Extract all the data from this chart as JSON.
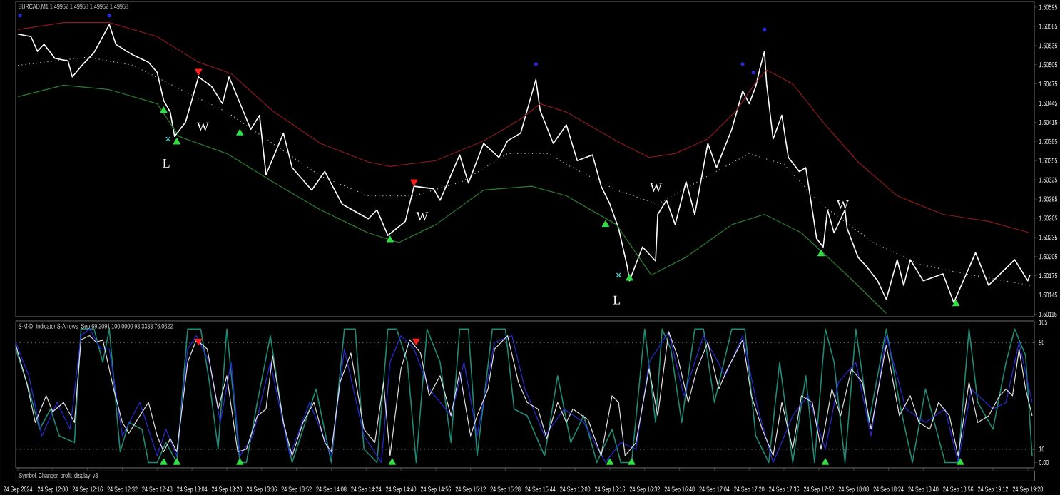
{
  "chart_data": [
    {
      "type": "line",
      "title": "EURCAD,M1 1.49962 1.49968 1.49962 1.49968",
      "xlim": [
        "2024-09-24T11:43",
        "2024-09-24T19:31"
      ],
      "ylim": [
        1.50111,
        1.50604
      ],
      "yticks": [
        1.50115,
        1.50145,
        1.50175,
        1.50205,
        1.50235,
        1.50265,
        1.50295,
        1.50325,
        1.50355,
        1.50385,
        1.50415,
        1.50445,
        1.50475,
        1.50505,
        1.50535,
        1.50565,
        1.50595
      ],
      "tick_labels": "y",
      "annotations": [
        "L",
        "W",
        "W",
        "L",
        "W",
        "W"
      ],
      "series": [
        {
          "color": "#ffffff",
          "x": [
            "2024-09-24T11:44",
            "2024-09-24T11:50",
            "2024-09-24T11:53",
            "2024-09-24T11:56",
            "2024-09-24T12:01",
            "2024-09-24T12:07",
            "2024-09-24T12:09",
            "2024-09-24T12:14",
            "2024-09-24T12:19",
            "2024-09-24T12:26",
            "2024-09-24T12:29",
            "2024-09-24T12:34",
            "2024-09-24T12:37",
            "2024-09-24T12:44",
            "2024-09-24T12:48",
            "2024-09-24T12:51",
            "2024-09-24T12:54",
            "2024-09-24T12:56",
            "2024-09-24T13:01",
            "2024-09-24T13:07",
            "2024-09-24T13:13",
            "2024-09-24T13:18",
            "2024-09-24T13:21",
            "2024-09-24T13:31",
            "2024-09-24T13:35",
            "2024-09-24T13:38",
            "2024-09-24T13:46",
            "2024-09-24T13:50",
            "2024-09-24T13:59",
            "2024-09-24T14:05",
            "2024-09-24T14:13",
            "2024-09-24T14:25",
            "2024-09-24T14:29",
            "2024-09-24T14:34",
            "2024-09-24T14:42",
            "2024-09-24T14:46",
            "2024-09-24T14:55",
            "2024-09-24T14:58",
            "2024-09-24T15:07",
            "2024-09-24T15:11",
            "2024-09-24T15:18",
            "2024-09-24T15:25",
            "2024-09-24T15:29",
            "2024-09-24T15:35",
            "2024-09-24T15:42",
            "2024-09-24T15:44",
            "2024-09-24T15:50",
            "2024-09-24T15:56",
            "2024-09-24T16:01",
            "2024-09-24T16:08",
            "2024-09-24T16:12",
            "2024-09-24T16:16",
            "2024-09-24T16:20",
            "2024-09-24T16:24",
            "2024-09-24T16:25",
            "2024-09-24T16:31",
            "2024-09-24T16:37",
            "2024-09-24T16:38",
            "2024-09-24T16:42",
            "2024-09-24T16:46",
            "2024-09-24T16:51",
            "2024-09-24T16:55",
            "2024-09-24T17:01",
            "2024-09-24T17:05",
            "2024-09-24T17:12",
            "2024-09-24T17:17",
            "2024-09-24T17:20",
            "2024-09-24T17:23",
            "2024-09-24T17:25",
            "2024-09-24T17:27",
            "2024-09-24T17:28",
            "2024-09-24T17:31",
            "2024-09-24T17:35",
            "2024-09-24T17:38",
            "2024-09-24T17:43",
            "2024-09-24T17:46",
            "2024-09-24T17:51",
            "2024-09-24T17:54",
            "2024-09-24T17:56",
            "2024-09-24T17:59",
            "2024-09-24T18:04",
            "2024-09-24T18:05",
            "2024-09-24T18:10",
            "2024-09-24T18:14",
            "2024-09-24T18:19",
            "2024-09-24T18:23",
            "2024-09-24T18:28",
            "2024-09-24T18:31",
            "2024-09-24T18:34",
            "2024-09-24T18:40",
            "2024-09-24T18:49",
            "2024-09-24T18:54",
            "2024-09-24T19:04",
            "2024-09-24T19:10",
            "2024-09-24T19:22",
            "2024-09-24T19:28",
            "2024-09-24T19:29"
          ],
          "values": [
            1.50553,
            1.50549,
            1.50526,
            1.50537,
            1.50515,
            1.50511,
            1.50486,
            1.50506,
            1.50524,
            1.50568,
            1.50537,
            1.50526,
            1.5052,
            1.50509,
            1.50493,
            1.50449,
            1.50431,
            1.50393,
            1.50415,
            1.50486,
            1.50471,
            1.50444,
            1.50486,
            1.50404,
            1.50426,
            1.50333,
            1.50398,
            1.50344,
            1.50309,
            1.50338,
            1.50287,
            1.50264,
            1.50278,
            1.50238,
            1.5026,
            1.50315,
            1.50311,
            1.50293,
            1.50364,
            1.5032,
            1.50382,
            1.5036,
            1.50386,
            1.50398,
            1.50482,
            1.50433,
            1.50382,
            1.50411,
            1.50355,
            1.50364,
            1.50315,
            1.50287,
            1.50249,
            1.50189,
            1.50167,
            1.5022,
            1.50198,
            1.50271,
            1.50293,
            1.50255,
            1.50322,
            1.50271,
            1.50382,
            1.50344,
            1.50404,
            1.50464,
            1.50444,
            1.50471,
            1.505,
            1.50526,
            1.50475,
            1.50389,
            1.50426,
            1.5036,
            1.50338,
            1.50344,
            1.50233,
            1.5022,
            1.50278,
            1.50242,
            1.50278,
            1.50249,
            1.50204,
            1.50189,
            1.50167,
            1.50138,
            1.502,
            1.5016,
            1.502,
            1.50167,
            1.50178,
            1.50133,
            1.50211,
            1.5016,
            1.502,
            1.50167,
            1.50176
          ]
        },
        {
          "color": "#8b1a1a",
          "x": [
            "2024-09-24T11:44",
            "2024-09-24T12:05",
            "2024-09-24T12:26",
            "2024-09-24T12:48",
            "2024-09-24T13:07",
            "2024-09-24T13:22",
            "2024-09-24T13:41",
            "2024-09-24T14:03",
            "2024-09-24T14:25",
            "2024-09-24T14:35",
            "2024-09-24T14:56",
            "2024-09-24T15:18",
            "2024-09-24T15:35",
            "2024-09-24T15:44",
            "2024-09-24T15:56",
            "2024-09-24T16:19",
            "2024-09-24T16:34",
            "2024-09-24T16:46",
            "2024-09-24T17:01",
            "2024-09-24T17:14",
            "2024-09-24T17:23",
            "2024-09-24T17:28",
            "2024-09-24T17:40",
            "2024-09-24T17:55",
            "2024-09-24T18:10",
            "2024-09-24T18:28",
            "2024-09-24T18:49",
            "2024-09-24T19:10",
            "2024-09-24T19:29"
          ],
          "values": [
            1.5056,
            1.50571,
            1.50571,
            1.50549,
            1.50509,
            1.50491,
            1.50433,
            1.50382,
            1.50353,
            1.50346,
            1.50355,
            1.50386,
            1.5042,
            1.50444,
            1.50431,
            1.50386,
            1.5036,
            1.50366,
            1.50389,
            1.50433,
            1.50477,
            1.50497,
            1.50475,
            1.50411,
            1.50353,
            1.503,
            1.50271,
            1.5026,
            1.50242
          ]
        },
        {
          "color": "#b4b4b4",
          "line_style": "dotted",
          "x": [
            "2024-09-24T11:44",
            "2024-09-24T12:16",
            "2024-09-24T12:37",
            "2024-09-24T12:59",
            "2024-09-24T13:20",
            "2024-09-24T13:41",
            "2024-09-24T14:03",
            "2024-09-24T14:25",
            "2024-09-24T14:46",
            "2024-09-24T15:08",
            "2024-09-24T15:29",
            "2024-09-24T15:48",
            "2024-09-24T15:56",
            "2024-09-24T16:19",
            "2024-09-24T16:38",
            "2024-09-24T17:01",
            "2024-09-24T17:20",
            "2024-09-24T17:36",
            "2024-09-24T17:53",
            "2024-09-24T18:17",
            "2024-09-24T18:38",
            "2024-09-24T18:59",
            "2024-09-24T19:29"
          ],
          "values": [
            1.50504,
            1.50517,
            1.50504,
            1.50466,
            1.50431,
            1.50382,
            1.50331,
            1.503,
            1.503,
            1.50322,
            1.50366,
            1.50366,
            1.50349,
            1.50309,
            1.50287,
            1.50331,
            1.50366,
            1.50349,
            1.50287,
            1.50227,
            1.50193,
            1.50178,
            1.5016
          ]
        },
        {
          "color": "#2e7d32",
          "x": [
            "2024-09-24T11:44",
            "2024-09-24T12:05",
            "2024-09-24T12:26",
            "2024-09-24T12:48",
            "2024-09-24T12:58",
            "2024-09-24T13:20",
            "2024-09-24T13:41",
            "2024-09-24T14:03",
            "2024-09-24T14:25",
            "2024-09-24T14:39",
            "2024-09-24T14:56",
            "2024-09-24T15:18",
            "2024-09-24T15:40",
            "2024-09-24T15:56",
            "2024-09-24T16:19",
            "2024-09-24T16:35",
            "2024-09-24T16:51",
            "2024-09-24T17:12",
            "2024-09-24T17:27",
            "2024-09-24T17:44",
            "2024-09-24T18:05",
            "2024-09-24T18:23"
          ],
          "values": [
            1.50455,
            1.50473,
            1.50466,
            1.50444,
            1.50393,
            1.50366,
            1.50322,
            1.50278,
            1.50242,
            1.50227,
            1.50255,
            1.50309,
            1.50315,
            1.503,
            1.50255,
            1.50176,
            1.50204,
            1.50255,
            1.50271,
            1.50242,
            1.50176,
            1.50116
          ]
        },
        {
          "type": "scatter",
          "marker": "triangle",
          "color": "#33dd44",
          "x": [
            "2024-09-24T12:51",
            "2024-09-24T12:57",
            "2024-09-24T13:26",
            "2024-09-24T14:35",
            "2024-09-24T16:14",
            "2024-09-24T16:25",
            "2024-09-24T17:53",
            "2024-09-24T18:55"
          ],
          "values": [
            1.50433,
            1.50384,
            1.50398,
            1.50231,
            1.50255,
            1.50171,
            1.50209,
            1.50131
          ]
        },
        {
          "type": "scatter",
          "marker": "triangle-down",
          "color": "#ff2020",
          "x": [
            "2024-09-24T13:07",
            "2024-09-24T14:46"
          ],
          "values": [
            1.50495,
            1.50322
          ]
        },
        {
          "type": "scatter",
          "marker": "circle",
          "color": "#2a2ad8",
          "x": [
            "2024-09-24T11:45",
            "2024-09-24T12:26",
            "2024-09-24T15:42",
            "2024-09-24T17:17",
            "2024-09-24T17:22",
            "2024-09-24T17:27"
          ],
          "values": [
            1.50582,
            1.50582,
            1.50506,
            1.50506,
            1.50493,
            1.5056
          ]
        },
        {
          "type": "scatter",
          "marker": "cross",
          "color": "#40e0e0",
          "x": [
            "2024-09-24T12:53",
            "2024-09-24T16:20"
          ],
          "values": [
            1.50389,
            1.50176
          ]
        }
      ]
    },
    {
      "type": "line",
      "title": "S-M-D_Indicator S-Arrows_Sep 69.2091 100.0000 93.3333 76.0622",
      "xlim": [
        "2024-09-24T11:43",
        "2024-09-24T19:31"
      ],
      "ylim": [
        -4,
        106
      ],
      "xticks": [
        {
          "value": "2024-09-24T11:44",
          "label": "24 Sep 2024"
        },
        {
          "value": "2024-09-24T12:00",
          "label": "24 Sep 12:00"
        },
        {
          "value": "2024-09-24T12:16",
          "label": "24 Sep 12:16"
        },
        {
          "value": "2024-09-24T12:32",
          "label": "24 Sep 12:32"
        },
        {
          "value": "2024-09-24T12:48",
          "label": "24 Sep 12:48"
        },
        {
          "value": "2024-09-24T13:04",
          "label": "24 Sep 13:04"
        },
        {
          "value": "2024-09-24T13:20",
          "label": "24 Sep 13:20"
        },
        {
          "value": "2024-09-24T13:36",
          "label": "24 Sep 13:36"
        },
        {
          "value": "2024-09-24T13:52",
          "label": "24 Sep 13:52"
        },
        {
          "value": "2024-09-24T14:08",
          "label": "24 Sep 14:08"
        },
        {
          "value": "2024-09-24T14:24",
          "label": "24 Sep 14:24"
        },
        {
          "value": "2024-09-24T14:40",
          "label": "24 Sep 14:40"
        },
        {
          "value": "2024-09-24T14:56",
          "label": "24 Sep 14:56"
        },
        {
          "value": "2024-09-24T15:12",
          "label": "24 Sep 15:12"
        },
        {
          "value": "2024-09-24T15:28",
          "label": "24 Sep 15:28"
        },
        {
          "value": "2024-09-24T15:44",
          "label": "24 Sep 15:44"
        },
        {
          "value": "2024-09-24T16:00",
          "label": "24 Sep 16:00"
        },
        {
          "value": "2024-09-24T16:16",
          "label": "24 Sep 16:16"
        },
        {
          "value": "2024-09-24T16:32",
          "label": "24 Sep 16:32"
        },
        {
          "value": "2024-09-24T16:48",
          "label": "24 Sep 16:48"
        },
        {
          "value": "2024-09-24T17:04",
          "label": "24 Sep 17:04"
        },
        {
          "value": "2024-09-24T17:20",
          "label": "24 Sep 17:20"
        },
        {
          "value": "2024-09-24T17:36",
          "label": "24 Sep 17:36"
        },
        {
          "value": "2024-09-24T17:52",
          "label": "24 Sep 17:52"
        },
        {
          "value": "2024-09-24T18:08",
          "label": "24 Sep 18:08"
        },
        {
          "value": "2024-09-24T18:24",
          "label": "24 Sep 18:24"
        },
        {
          "value": "2024-09-24T18:40",
          "label": "24 Sep 18:40"
        },
        {
          "value": "2024-09-24T18:56",
          "label": "24 Sep 18:56"
        },
        {
          "value": "2024-09-24T19:12",
          "label": "24 Sep 19:12"
        },
        {
          "value": "2024-09-24T19:28",
          "label": "24 Sep 19:28"
        }
      ],
      "yticks": [
        {
          "value": 0,
          "label": "0.00"
        },
        10,
        90,
        105
      ],
      "ref_lines": [
        {
          "axis": "y",
          "value": 90,
          "color": "#808080",
          "line_style": "dotted"
        },
        {
          "axis": "y",
          "value": 10,
          "color": "#808080",
          "line_style": "dotted"
        }
      ],
      "annotations": [
        "Symbol Changer profit display v3"
      ],
      "series": [
        {
          "color": "#1f8a78",
          "x": [
            "2024-09-24T11:43",
            "2024-09-24T11:49",
            "2024-09-24T11:54",
            "2024-09-24T11:59",
            "2024-09-24T12:03",
            "2024-09-24T12:10",
            "2024-09-24T12:13",
            "2024-09-24T12:19",
            "2024-09-24T12:23",
            "2024-09-24T12:26",
            "2024-09-24T12:31",
            "2024-09-24T12:35",
            "2024-09-24T12:41",
            "2024-09-24T12:44",
            "2024-09-24T12:48",
            "2024-09-24T12:52",
            "2024-09-24T12:57",
            "2024-09-24T13:02",
            "2024-09-24T13:08",
            "2024-09-24T13:12",
            "2024-09-24T13:16",
            "2024-09-24T13:20",
            "2024-09-24T13:26",
            "2024-09-24T13:29",
            "2024-09-24T13:34",
            "2024-09-24T13:40",
            "2024-09-24T13:46",
            "2024-09-24T13:50",
            "2024-09-24T13:55",
            "2024-09-24T14:01",
            "2024-09-24T14:08",
            "2024-09-24T14:14",
            "2024-09-24T14:19",
            "2024-09-24T14:23",
            "2024-09-24T14:29",
            "2024-09-24T14:34",
            "2024-09-24T14:38",
            "2024-09-24T14:43",
            "2024-09-24T14:47",
            "2024-09-24T14:52",
            "2024-09-24T14:58",
            "2024-09-24T15:03",
            "2024-09-24T15:07",
            "2024-09-24T15:11",
            "2024-09-24T15:15",
            "2024-09-24T15:22",
            "2024-09-24T15:28",
            "2024-09-24T15:32",
            "2024-09-24T15:38",
            "2024-09-24T15:46",
            "2024-09-24T15:52",
            "2024-09-24T15:58",
            "2024-09-24T16:04",
            "2024-09-24T16:10",
            "2024-09-24T16:17",
            "2024-09-24T16:21",
            "2024-09-24T16:26",
            "2024-09-24T16:32",
            "2024-09-24T16:37",
            "2024-09-24T16:40",
            "2024-09-24T16:44",
            "2024-09-24T16:49",
            "2024-09-24T16:55",
            "2024-09-24T16:59",
            "2024-09-24T17:04",
            "2024-09-24T17:12",
            "2024-09-24T17:18",
            "2024-09-24T17:23",
            "2024-09-24T17:29",
            "2024-09-24T17:34",
            "2024-09-24T17:40",
            "2024-09-24T17:46",
            "2024-09-24T17:50",
            "2024-09-24T17:55",
            "2024-09-24T17:59",
            "2024-09-24T18:04",
            "2024-09-24T18:09",
            "2024-09-24T18:15",
            "2024-09-24T18:23",
            "2024-09-24T18:29",
            "2024-09-24T18:35",
            "2024-09-24T18:41",
            "2024-09-24T18:50",
            "2024-09-24T18:56",
            "2024-09-24T19:01",
            "2024-09-24T19:05",
            "2024-09-24T19:12",
            "2024-09-24T19:18",
            "2024-09-24T19:22",
            "2024-09-24T19:27",
            "2024-09-24T19:30"
          ],
          "values": [
            85,
            55,
            25,
            40,
            20,
            15,
            100,
            100,
            75,
            100,
            8,
            30,
            25,
            0,
            0,
            15,
            0,
            100,
            100,
            60,
            10,
            100,
            0,
            0,
            45,
            95,
            30,
            0,
            25,
            55,
            0,
            100,
            100,
            10,
            0,
            100,
            100,
            75,
            0,
            100,
            75,
            15,
            100,
            100,
            5,
            100,
            100,
            40,
            35,
            5,
            65,
            15,
            35,
            0,
            25,
            0,
            0,
            100,
            30,
            100,
            85,
            30,
            100,
            100,
            45,
            100,
            100,
            20,
            0,
            75,
            0,
            65,
            0,
            100,
            75,
            0,
            100,
            30,
            100,
            45,
            0,
            55,
            0,
            0,
            100,
            45,
            25,
            75,
            100,
            80,
            5
          ]
        },
        {
          "color": "#2a2ad8",
          "x": [
            "2024-09-24T11:43",
            "2024-09-24T11:49",
            "2024-09-24T11:55",
            "2024-09-24T12:02",
            "2024-09-24T12:08",
            "2024-09-24T12:13",
            "2024-09-24T12:17",
            "2024-09-24T12:22",
            "2024-09-24T12:26",
            "2024-09-24T12:32",
            "2024-09-24T12:40",
            "2024-09-24T12:48",
            "2024-09-24T12:52",
            "2024-09-24T12:57",
            "2024-09-24T13:02",
            "2024-09-24T13:06",
            "2024-09-24T13:12",
            "2024-09-24T13:17",
            "2024-09-24T13:22",
            "2024-09-24T13:26",
            "2024-09-24T13:32",
            "2024-09-24T13:40",
            "2024-09-24T13:49",
            "2024-09-24T13:58",
            "2024-09-24T14:08",
            "2024-09-24T14:14",
            "2024-09-24T14:23",
            "2024-09-24T14:31",
            "2024-09-24T14:35",
            "2024-09-24T14:40",
            "2024-09-24T14:46",
            "2024-09-24T14:53",
            "2024-09-24T15:03",
            "2024-09-24T15:09",
            "2024-09-24T15:15",
            "2024-09-24T15:23",
            "2024-09-24T15:31",
            "2024-09-24T15:37",
            "2024-09-24T15:46",
            "2024-09-24T15:55",
            "2024-09-24T16:04",
            "2024-09-24T16:14",
            "2024-09-24T16:21",
            "2024-09-24T16:28",
            "2024-09-24T16:34",
            "2024-09-24T16:43",
            "2024-09-24T16:50",
            "2024-09-24T16:59",
            "2024-09-24T17:09",
            "2024-09-24T17:17",
            "2024-09-24T17:24",
            "2024-09-24T17:31",
            "2024-09-24T17:40",
            "2024-09-24T17:47",
            "2024-09-24T17:55",
            "2024-09-24T18:01",
            "2024-09-24T18:09",
            "2024-09-24T18:16",
            "2024-09-24T18:23",
            "2024-09-24T18:32",
            "2024-09-24T18:41",
            "2024-09-24T18:50",
            "2024-09-24T18:56",
            "2024-09-24T19:02",
            "2024-09-24T19:12",
            "2024-09-24T19:18",
            "2024-09-24T19:24",
            "2024-09-24T19:30"
          ],
          "values": [
            90,
            65,
            20,
            45,
            25,
            95,
            100,
            85,
            85,
            20,
            45,
            5,
            25,
            5,
            85,
            95,
            75,
            30,
            75,
            5,
            20,
            75,
            5,
            45,
            5,
            85,
            20,
            0,
            75,
            95,
            85,
            55,
            35,
            75,
            20,
            90,
            95,
            55,
            20,
            40,
            30,
            0,
            15,
            10,
            75,
            98,
            50,
            95,
            65,
            95,
            40,
            0,
            35,
            50,
            10,
            60,
            75,
            20,
            95,
            40,
            30,
            40,
            0,
            55,
            40,
            45,
            90,
            45
          ]
        },
        {
          "color": "#e0e0e0",
          "x": [
            "2024-09-24T11:43",
            "2024-09-24T11:48",
            "2024-09-24T11:52",
            "2024-09-24T11:57",
            "2024-09-24T12:00",
            "2024-09-24T12:05",
            "2024-09-24T12:10",
            "2024-09-24T12:13",
            "2024-09-24T12:17",
            "2024-09-24T12:20",
            "2024-09-24T12:23",
            "2024-09-24T12:28",
            "2024-09-24T12:32",
            "2024-09-24T12:35",
            "2024-09-24T12:40",
            "2024-09-24T12:44",
            "2024-09-24T12:48",
            "2024-09-24T12:51",
            "2024-09-24T12:54",
            "2024-09-24T12:57",
            "2024-09-24T13:02",
            "2024-09-24T13:06",
            "2024-09-24T13:11",
            "2024-09-24T13:16",
            "2024-09-24T13:20",
            "2024-09-24T13:25",
            "2024-09-24T13:29",
            "2024-09-24T13:34",
            "2024-09-24T13:38",
            "2024-09-24T13:41",
            "2024-09-24T13:46",
            "2024-09-24T13:50",
            "2024-09-24T13:55",
            "2024-09-24T14:00",
            "2024-09-24T14:05",
            "2024-09-24T14:08",
            "2024-09-24T14:12",
            "2024-09-24T14:17",
            "2024-09-24T14:23",
            "2024-09-24T14:28",
            "2024-09-24T14:32",
            "2024-09-24T14:35",
            "2024-09-24T14:40",
            "2024-09-24T14:44",
            "2024-09-24T14:49",
            "2024-09-24T14:53",
            "2024-09-24T14:58",
            "2024-09-24T15:03",
            "2024-09-24T15:07",
            "2024-09-24T15:12",
            "2024-09-24T15:15",
            "2024-09-24T15:20",
            "2024-09-24T15:23",
            "2024-09-24T15:29",
            "2024-09-24T15:34",
            "2024-09-24T15:38",
            "2024-09-24T15:43",
            "2024-09-24T15:47",
            "2024-09-24T15:52",
            "2024-09-24T15:56",
            "2024-09-24T15:59",
            "2024-09-24T16:06",
            "2024-09-24T16:12",
            "2024-09-24T16:17",
            "2024-09-24T16:20",
            "2024-09-24T16:23",
            "2024-09-24T16:28",
            "2024-09-24T16:34",
            "2024-09-24T16:38",
            "2024-09-24T16:43",
            "2024-09-24T16:47",
            "2024-09-24T16:52",
            "2024-09-24T16:56",
            "2024-09-24T17:01",
            "2024-09-24T17:06",
            "2024-09-24T17:10",
            "2024-09-24T17:17",
            "2024-09-24T17:21",
            "2024-09-24T17:26",
            "2024-09-24T17:31",
            "2024-09-24T17:35",
            "2024-09-24T17:40",
            "2024-09-24T17:44",
            "2024-09-24T17:49",
            "2024-09-24T17:53",
            "2024-09-24T17:58",
            "2024-09-24T18:02",
            "2024-09-24T18:07",
            "2024-09-24T18:12",
            "2024-09-24T18:16",
            "2024-09-24T18:23",
            "2024-09-24T18:29",
            "2024-09-24T18:34",
            "2024-09-24T18:38",
            "2024-09-24T18:43",
            "2024-09-24T18:47",
            "2024-09-24T18:52",
            "2024-09-24T18:56",
            "2024-09-24T19:01",
            "2024-09-24T19:05",
            "2024-09-24T19:10",
            "2024-09-24T19:15",
            "2024-09-24T19:18",
            "2024-09-24T19:21",
            "2024-09-24T19:24",
            "2024-09-24T19:27",
            "2024-09-24T19:30"
          ],
          "values": [
            88,
            60,
            30,
            50,
            38,
            45,
            30,
            92,
            95,
            90,
            92,
            55,
            30,
            22,
            35,
            45,
            20,
            8,
            18,
            8,
            75,
            92,
            85,
            40,
            65,
            8,
            10,
            35,
            40,
            80,
            30,
            5,
            30,
            45,
            15,
            8,
            60,
            82,
            25,
            15,
            60,
            5,
            70,
            92,
            82,
            50,
            65,
            35,
            68,
            20,
            35,
            55,
            85,
            95,
            60,
            45,
            40,
            18,
            45,
            30,
            40,
            32,
            5,
            50,
            45,
            5,
            15,
            70,
            35,
            98,
            80,
            45,
            70,
            90,
            55,
            70,
            92,
            50,
            25,
            5,
            45,
            10,
            50,
            45,
            10,
            55,
            35,
            70,
            60,
            25,
            88,
            35,
            50,
            30,
            25,
            45,
            35,
            5,
            60,
            30,
            35,
            50,
            55,
            50,
            85,
            55,
            35
          ]
        },
        {
          "type": "scatter",
          "marker": "triangle",
          "color": "#33dd44",
          "x": [
            "2024-09-24T12:51",
            "2024-09-24T12:57",
            "2024-09-24T13:26",
            "2024-09-24T14:36",
            "2024-09-24T16:16",
            "2024-09-24T16:26",
            "2024-09-24T17:55",
            "2024-09-24T18:57"
          ],
          "values": [
            0,
            0,
            0,
            0,
            0,
            0,
            0,
            0
          ]
        },
        {
          "type": "scatter",
          "marker": "triangle-down",
          "color": "#ff2020",
          "x": [
            "2024-09-24T13:07",
            "2024-09-24T14:47"
          ],
          "values": [
            91,
            91
          ]
        }
      ]
    }
  ]
}
